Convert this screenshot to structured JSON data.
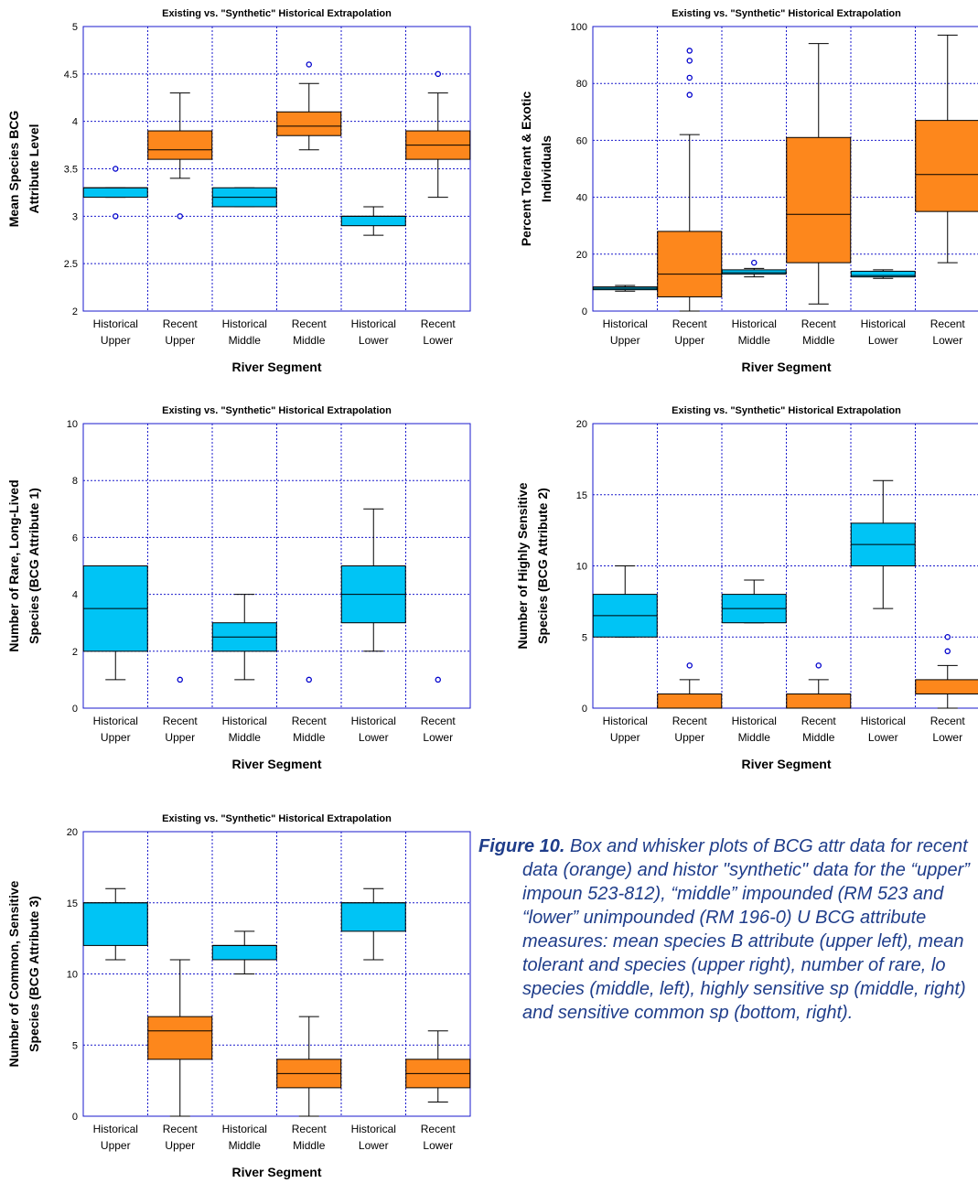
{
  "colors": {
    "historical": "#00c4f5",
    "recent": "#fd871c",
    "grid": "#1a1acc",
    "outlier": "#0000cc",
    "caption": "#1f3d8a"
  },
  "caption": {
    "label": "Figure 10.",
    "text": "Box and whisker plots of BCG attr data for recent data (orange) and histor \"synthetic\" data for the “upper” impoun 523-812), “middle” impounded (RM 523 and “lower” unimpounded (RM 196-0) U BCG attribute measures: mean species B attribute (upper left), mean tolerant and species (upper right), number of rare, lo species (middle, left), highly sensitive sp (middle, right) and sensitive common sp (bottom, right)."
  },
  "chart_data": [
    {
      "type": "box",
      "title": "Existing vs. \"Synthetic\" Historical Extrapolation",
      "xlabel": "River Segment",
      "ylabel": "Mean Species BCG Attribute Level",
      "ylim": [
        2,
        5
      ],
      "yticks": [
        "2",
        "2.5",
        "3",
        "3.5",
        "4",
        "4.5",
        "5"
      ],
      "categories": [
        "Historical Upper",
        "Recent Upper",
        "Historical Middle",
        "Recent Middle",
        "Historical Lower",
        "Recent Lower"
      ],
      "boxes": [
        {
          "group": "historical",
          "whisker_low": 3.2,
          "q1": 3.2,
          "median": 3.3,
          "q3": 3.3,
          "whisker_high": 3.3,
          "outliers": [
            3.0,
            3.5
          ]
        },
        {
          "group": "recent",
          "whisker_low": 3.4,
          "q1": 3.6,
          "median": 3.7,
          "q3": 3.9,
          "whisker_high": 4.3,
          "outliers": [
            3.0
          ]
        },
        {
          "group": "historical",
          "whisker_low": 3.1,
          "q1": 3.1,
          "median": 3.2,
          "q3": 3.3,
          "whisker_high": 3.3,
          "outliers": []
        },
        {
          "group": "recent",
          "whisker_low": 3.7,
          "q1": 3.85,
          "median": 3.95,
          "q3": 4.1,
          "whisker_high": 4.4,
          "outliers": [
            4.6
          ]
        },
        {
          "group": "historical",
          "whisker_low": 2.8,
          "q1": 2.9,
          "median": 3.0,
          "q3": 3.0,
          "whisker_high": 3.1,
          "outliers": []
        },
        {
          "group": "recent",
          "whisker_low": 3.2,
          "q1": 3.6,
          "median": 3.75,
          "q3": 3.9,
          "whisker_high": 4.3,
          "outliers": [
            4.5
          ]
        }
      ]
    },
    {
      "type": "box",
      "title": "Existing vs. \"Synthetic\" Historical Extrapolation",
      "xlabel": "River Segment",
      "ylabel": "Percent Tolerant & Exotic Individuals",
      "ylim": [
        0,
        100
      ],
      "yticks": [
        "0",
        "20",
        "40",
        "60",
        "80",
        "100"
      ],
      "categories": [
        "Historical Upper",
        "Recent Upper",
        "Historical Middle",
        "Recent Middle",
        "Historical Lower",
        "Recent Lower"
      ],
      "boxes": [
        {
          "group": "historical",
          "whisker_low": 7,
          "q1": 7.5,
          "median": 8,
          "q3": 8.5,
          "whisker_high": 9,
          "outliers": []
        },
        {
          "group": "recent",
          "whisker_low": 0,
          "q1": 5,
          "median": 13,
          "q3": 28,
          "whisker_high": 62,
          "outliers": [
            76,
            82,
            88,
            91.5
          ]
        },
        {
          "group": "historical",
          "whisker_low": 12,
          "q1": 13,
          "median": 13.5,
          "q3": 14.5,
          "whisker_high": 15,
          "outliers": [
            17
          ]
        },
        {
          "group": "recent",
          "whisker_low": 2.5,
          "q1": 17,
          "median": 34,
          "q3": 61,
          "whisker_high": 94,
          "outliers": []
        },
        {
          "group": "historical",
          "whisker_low": 11.5,
          "q1": 12,
          "median": 12.5,
          "q3": 14,
          "whisker_high": 14.5,
          "outliers": []
        },
        {
          "group": "recent",
          "whisker_low": 17,
          "q1": 35,
          "median": 48,
          "q3": 67,
          "whisker_high": 97,
          "outliers": []
        }
      ]
    },
    {
      "type": "box",
      "title": "Existing vs. \"Synthetic\" Historical Extrapolation",
      "xlabel": "River Segment",
      "ylabel": "Number of Rare, Long-Lived Species (BCG Attribute 1)",
      "ylim": [
        0,
        10
      ],
      "yticks": [
        "0",
        "2",
        "4",
        "6",
        "8",
        "10"
      ],
      "categories": [
        "Historical Upper",
        "Recent Upper",
        "Historical Middle",
        "Recent Middle",
        "Historical Lower",
        "Recent Lower"
      ],
      "boxes": [
        {
          "group": "historical",
          "whisker_low": 1,
          "q1": 2,
          "median": 3.5,
          "q3": 5,
          "whisker_high": 5,
          "outliers": []
        },
        {
          "group": "recent",
          "whisker_low": null,
          "q1": null,
          "median": null,
          "q3": null,
          "whisker_high": null,
          "outliers": [
            1
          ]
        },
        {
          "group": "historical",
          "whisker_low": 1,
          "q1": 2,
          "median": 2.5,
          "q3": 3,
          "whisker_high": 4,
          "outliers": []
        },
        {
          "group": "recent",
          "whisker_low": null,
          "q1": null,
          "median": null,
          "q3": null,
          "whisker_high": null,
          "outliers": [
            1
          ]
        },
        {
          "group": "historical",
          "whisker_low": 2,
          "q1": 3,
          "median": 4,
          "q3": 5,
          "whisker_high": 7,
          "outliers": []
        },
        {
          "group": "recent",
          "whisker_low": null,
          "q1": null,
          "median": null,
          "q3": null,
          "whisker_high": null,
          "outliers": [
            1
          ]
        }
      ]
    },
    {
      "type": "box",
      "title": "Existing vs. \"Synthetic\" Historical Extrapolation",
      "xlabel": "River Segment",
      "ylabel": "Number of Highly Sensitive Species (BCG Attribute 2)",
      "ylim": [
        0,
        20
      ],
      "yticks": [
        "0",
        "5",
        "10",
        "15",
        "20"
      ],
      "categories": [
        "Historical Upper",
        "Recent Upper",
        "Historical Middle",
        "Recent Middle",
        "Historical Lower",
        "Recent Lower"
      ],
      "boxes": [
        {
          "group": "historical",
          "whisker_low": 5,
          "q1": 5,
          "median": 6.5,
          "q3": 8,
          "whisker_high": 10,
          "outliers": []
        },
        {
          "group": "recent",
          "whisker_low": 0,
          "q1": 0,
          "median": 0,
          "q3": 1,
          "whisker_high": 2,
          "outliers": [
            3
          ]
        },
        {
          "group": "historical",
          "whisker_low": 6,
          "q1": 6,
          "median": 7,
          "q3": 8,
          "whisker_high": 9,
          "outliers": []
        },
        {
          "group": "recent",
          "whisker_low": 0,
          "q1": 0,
          "median": 0,
          "q3": 1,
          "whisker_high": 2,
          "outliers": [
            3
          ]
        },
        {
          "group": "historical",
          "whisker_low": 7,
          "q1": 10,
          "median": 11.5,
          "q3": 13,
          "whisker_high": 16,
          "outliers": []
        },
        {
          "group": "recent",
          "whisker_low": 0,
          "q1": 1,
          "median": 1,
          "q3": 2,
          "whisker_high": 3,
          "outliers": [
            4,
            5
          ]
        }
      ]
    },
    {
      "type": "box",
      "title": "Existing vs. \"Synthetic\" Historical Extrapolation",
      "xlabel": "River Segment",
      "ylabel": "Number of Common, Sensitive Species (BCG Attribute 3)",
      "ylim": [
        0,
        20
      ],
      "yticks": [
        "0",
        "5",
        "10",
        "15",
        "20"
      ],
      "categories": [
        "Historical Upper",
        "Recent Upper",
        "Historical Middle",
        "Recent Middle",
        "Historical Lower",
        "Recent Lower"
      ],
      "boxes": [
        {
          "group": "historical",
          "whisker_low": 11,
          "q1": 12,
          "median": 15,
          "q3": 15,
          "whisker_high": 16,
          "outliers": []
        },
        {
          "group": "recent",
          "whisker_low": 0,
          "q1": 4,
          "median": 6,
          "q3": 7,
          "whisker_high": 11,
          "outliers": []
        },
        {
          "group": "historical",
          "whisker_low": 10,
          "q1": 11,
          "median": 12,
          "q3": 12,
          "whisker_high": 13,
          "outliers": []
        },
        {
          "group": "recent",
          "whisker_low": 0,
          "q1": 2,
          "median": 3,
          "q3": 4,
          "whisker_high": 7,
          "outliers": []
        },
        {
          "group": "historical",
          "whisker_low": 11,
          "q1": 13,
          "median": 15,
          "q3": 15,
          "whisker_high": 16,
          "outliers": []
        },
        {
          "group": "recent",
          "whisker_low": 1,
          "q1": 2,
          "median": 3,
          "q3": 4,
          "whisker_high": 6,
          "outliers": []
        }
      ]
    }
  ]
}
